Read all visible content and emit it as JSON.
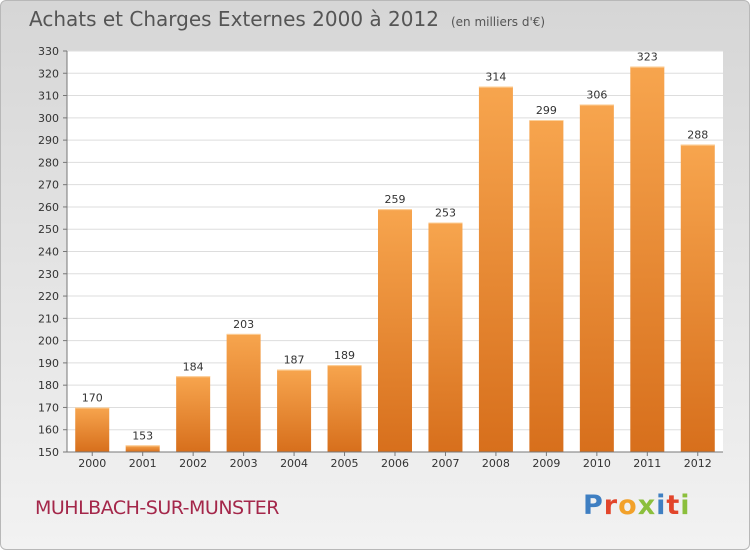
{
  "header": {
    "title": "Achats et Charges Externes 2000 à 2012",
    "subtitle": "(en milliers d'€)"
  },
  "footer": {
    "town": "MUHLBACH-SUR-MUNSTER"
  },
  "logo": {
    "text": "Proxiti",
    "letters": [
      {
        "ch": "P",
        "color": "#3f7fc2"
      },
      {
        "ch": "r",
        "color": "#e2452b"
      },
      {
        "ch": "o",
        "color": "#f2a12a"
      },
      {
        "ch": "x",
        "color": "#8bbf3c"
      },
      {
        "ch": "i",
        "color": "#3f7fc2"
      },
      {
        "ch": "t",
        "color": "#e2452b"
      },
      {
        "ch": "i",
        "color": "#8bbf3c"
      }
    ]
  },
  "chart_data": {
    "type": "bar",
    "title": "Achats et Charges Externes 2000 à 2012",
    "subtitle": "(en milliers d'€)",
    "categories": [
      "2000",
      "2001",
      "2002",
      "2003",
      "2004",
      "2005",
      "2006",
      "2007",
      "2008",
      "2009",
      "2010",
      "2011",
      "2012"
    ],
    "values": [
      170,
      153,
      184,
      203,
      187,
      189,
      259,
      253,
      314,
      299,
      306,
      323,
      288
    ],
    "ylim": [
      150,
      330
    ],
    "yticks": [
      150,
      160,
      170,
      180,
      190,
      200,
      210,
      220,
      230,
      240,
      250,
      260,
      270,
      280,
      290,
      300,
      310,
      320,
      330
    ],
    "grid": true,
    "colors": {
      "bar_light": "#f7a54e",
      "bar_dark": "#d76f1c"
    }
  }
}
